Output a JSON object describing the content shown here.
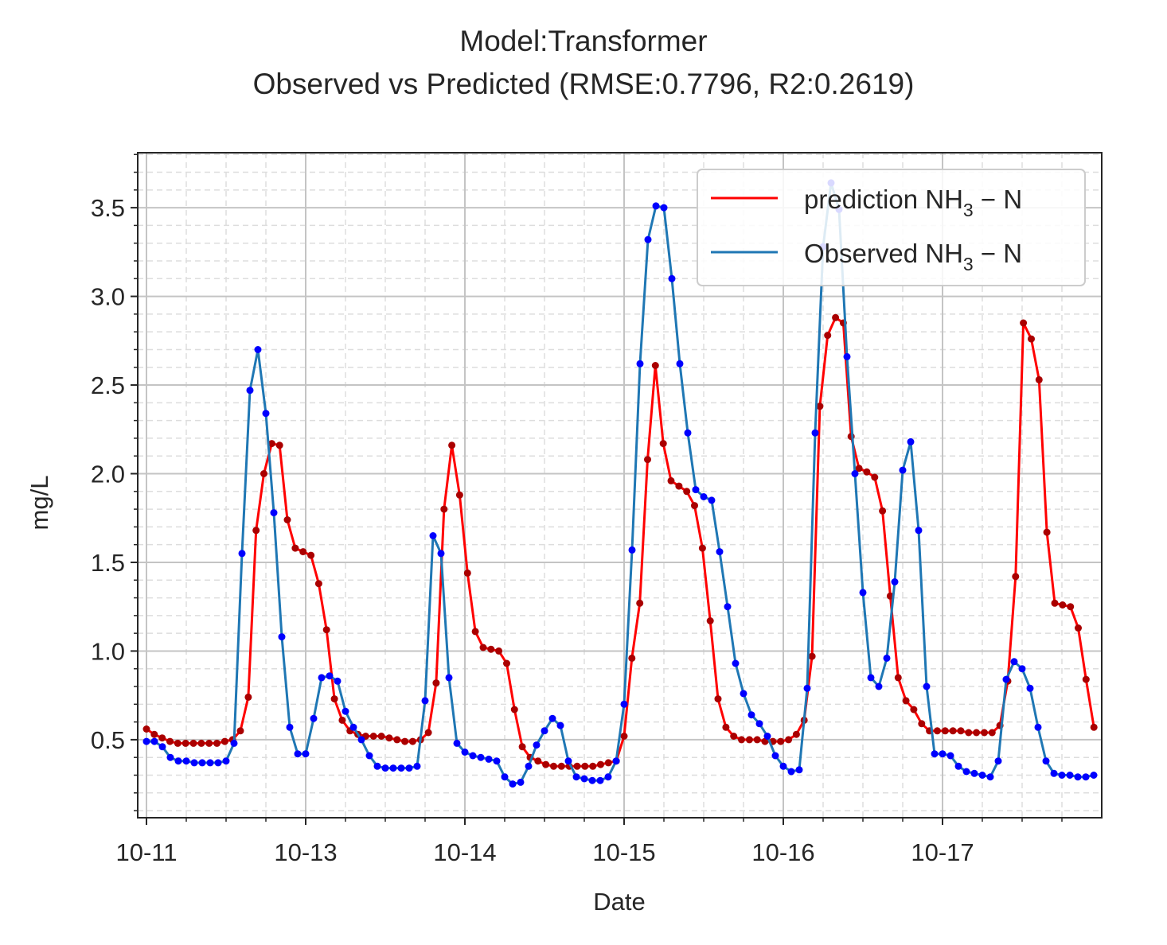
{
  "chart_data": {
    "type": "line",
    "title": "Model:Transformer",
    "subtitle": "Observed vs Predicted (RMSE:0.7796, R2:0.2619)",
    "xlabel": "Date",
    "ylabel": "mg/L",
    "x_ticks": [
      "10-11",
      "10-13",
      "10-14",
      "10-15",
      "10-16",
      "10-17"
    ],
    "y_ticks": [
      "0.5",
      "1.0",
      "1.5",
      "2.0",
      "2.5",
      "3.0",
      "3.5"
    ],
    "x_range": [
      0,
      6
    ],
    "ylim": [
      0.06,
      3.81
    ],
    "grid": true,
    "legend_position": "top-right",
    "series": [
      {
        "name_main": "prediction NH",
        "name_sub": "3",
        "name_tail": " − N",
        "color": "#ff0000",
        "marker_color": "#aa0000",
        "values": [
          0.56,
          0.53,
          0.51,
          0.49,
          0.48,
          0.48,
          0.48,
          0.48,
          0.48,
          0.48,
          0.49,
          0.5,
          0.55,
          0.74,
          1.68,
          2.0,
          2.17,
          2.16,
          1.74,
          1.58,
          1.56,
          1.54,
          1.38,
          1.12,
          0.73,
          0.61,
          0.55,
          0.53,
          0.52,
          0.52,
          0.52,
          0.51,
          0.5,
          0.49,
          0.49,
          0.5,
          0.54,
          0.82,
          1.8,
          2.16,
          1.88,
          1.44,
          1.11,
          1.02,
          1.01,
          1.0,
          0.93,
          0.67,
          0.46,
          0.4,
          0.38,
          0.36,
          0.35,
          0.35,
          0.35,
          0.35,
          0.35,
          0.35,
          0.36,
          0.37,
          0.38,
          0.52,
          0.96,
          1.27,
          2.08,
          2.61,
          2.17,
          1.96,
          1.93,
          1.9,
          1.82,
          1.58,
          1.17,
          0.73,
          0.57,
          0.52,
          0.5,
          0.5,
          0.5,
          0.49,
          0.49,
          0.49,
          0.5,
          0.53,
          0.61,
          0.97,
          2.38,
          2.78,
          2.88,
          2.85,
          2.21,
          2.03,
          2.01,
          1.98,
          1.79,
          1.31,
          0.85,
          0.72,
          0.67,
          0.59,
          0.55,
          0.55,
          0.55,
          0.55,
          0.55,
          0.54,
          0.54,
          0.54,
          0.54,
          0.58,
          0.83,
          1.42,
          2.85,
          2.76,
          2.53,
          1.67,
          1.27,
          1.26,
          1.25,
          1.13,
          0.84,
          0.57
        ]
      },
      {
        "name_main": "Observed NH",
        "name_sub": "3",
        "name_tail": " − N",
        "color": "#1f77b4",
        "marker_color": "#0000ff",
        "values": [
          0.49,
          0.49,
          0.46,
          0.4,
          0.38,
          0.38,
          0.37,
          0.37,
          0.37,
          0.37,
          0.38,
          0.48,
          1.55,
          2.47,
          2.7,
          2.34,
          1.78,
          1.08,
          0.57,
          0.42,
          0.42,
          0.62,
          0.85,
          0.86,
          0.83,
          0.66,
          0.57,
          0.5,
          0.41,
          0.35,
          0.34,
          0.34,
          0.34,
          0.34,
          0.35,
          0.72,
          1.65,
          1.55,
          0.85,
          0.48,
          0.43,
          0.41,
          0.4,
          0.39,
          0.38,
          0.29,
          0.25,
          0.26,
          0.35,
          0.47,
          0.55,
          0.62,
          0.58,
          0.38,
          0.29,
          0.28,
          0.27,
          0.27,
          0.29,
          0.38,
          0.7,
          1.57,
          2.62,
          3.32,
          3.51,
          3.5,
          3.1,
          2.62,
          2.23,
          1.91,
          1.87,
          1.85,
          1.56,
          1.25,
          0.93,
          0.76,
          0.64,
          0.59,
          0.52,
          0.41,
          0.35,
          0.32,
          0.33,
          0.79,
          2.23,
          3.28,
          3.64,
          3.49,
          2.66,
          2.0,
          1.33,
          0.85,
          0.8,
          0.96,
          1.39,
          2.02,
          2.18,
          1.68,
          0.8,
          0.42,
          0.42,
          0.41,
          0.35,
          0.32,
          0.31,
          0.3,
          0.29,
          0.38,
          0.84,
          0.94,
          0.9,
          0.79,
          0.57,
          0.38,
          0.31,
          0.3,
          0.3,
          0.29,
          0.29,
          0.3
        ]
      }
    ]
  }
}
